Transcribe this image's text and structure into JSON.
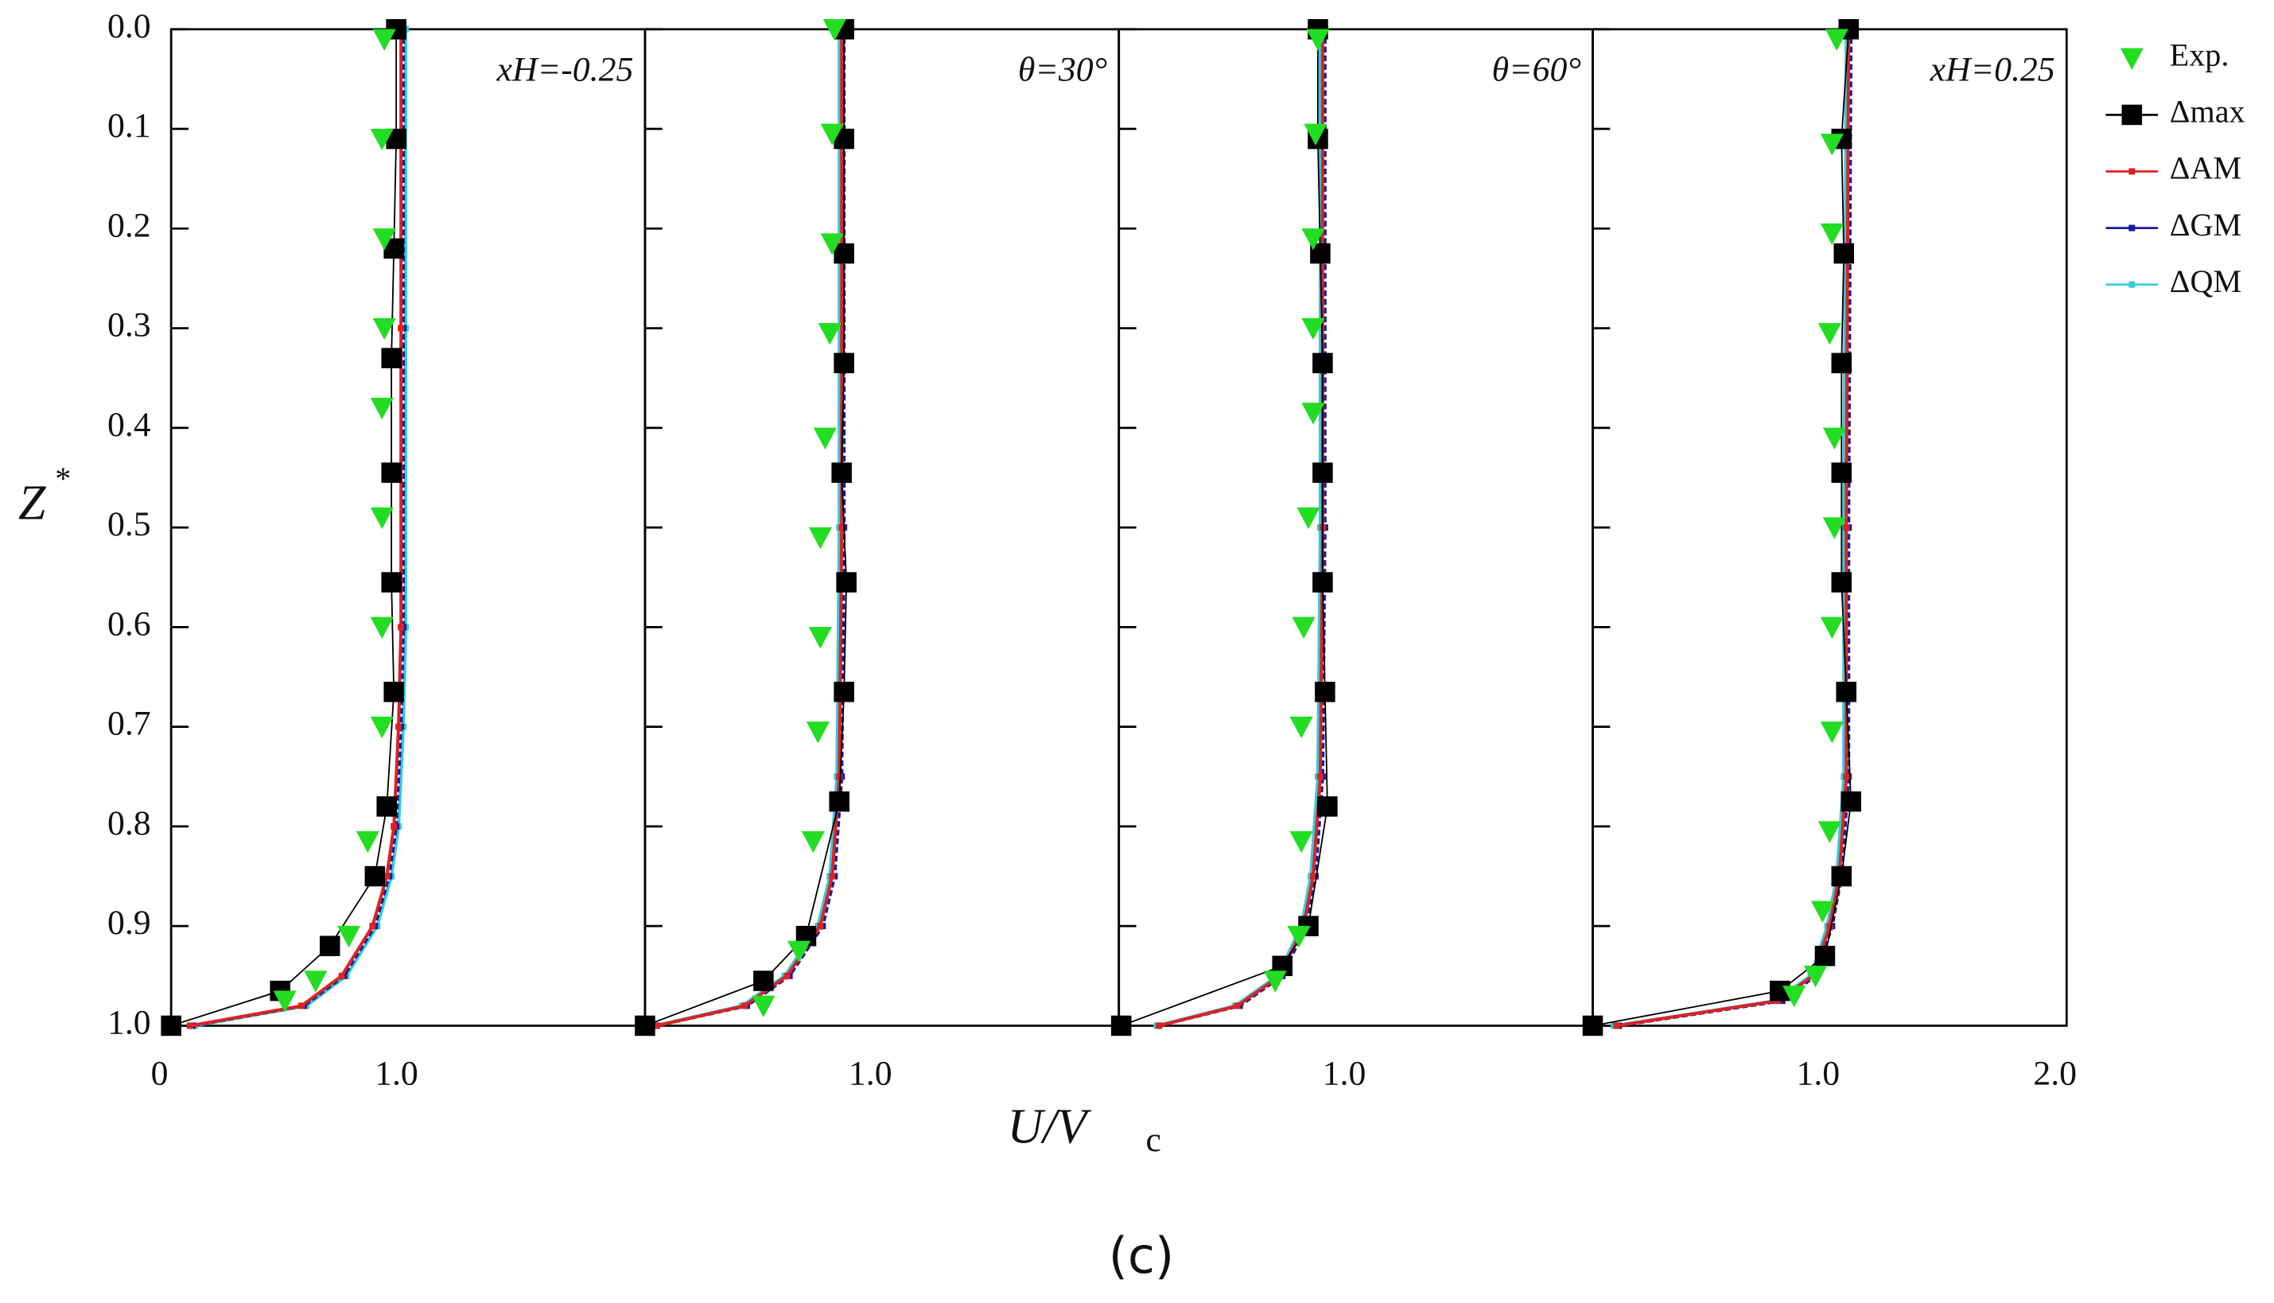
{
  "figure": {
    "xlabel": "U/V",
    "xlabel_sub": "c",
    "ylabel": "Z",
    "ylabel_sup": "*",
    "caption": "(c)"
  },
  "chart_data": [
    {
      "type": "line",
      "annotation": "xH=-0.25",
      "xlim": [
        0,
        2
      ],
      "ylim": [
        0,
        1
      ],
      "y_reversed": true,
      "xticks": [
        0,
        {
          "value": 1,
          "label": "1.0"
        }
      ],
      "yticks": [
        {
          "value": 0,
          "label": "0.0"
        },
        0.1,
        0.2,
        0.3,
        0.4,
        0.5,
        0.6,
        0.7,
        0.8,
        0.9,
        {
          "value": 1,
          "label": "1.0"
        }
      ],
      "series": [
        {
          "name": "Exp.",
          "color": "#22dd22",
          "marker": "triangle-down",
          "line": false,
          "x": [
            0.9,
            0.89,
            0.9,
            0.9,
            0.89,
            0.89,
            0.89,
            0.89,
            0.83,
            0.75,
            0.61,
            0.48
          ],
          "y": [
            0.01,
            0.11,
            0.21,
            0.3,
            0.38,
            0.49,
            0.6,
            0.7,
            0.815,
            0.91,
            0.955,
            0.975
          ]
        },
        {
          "name": "Δmax",
          "color": "#000000",
          "marker": "square",
          "line": true,
          "x": [
            0.95,
            0.95,
            0.94,
            0.93,
            0.93,
            0.93,
            0.94,
            0.91,
            0.86,
            0.67,
            0.46,
            0.0
          ],
          "y": [
            0.0,
            0.11,
            0.22,
            0.33,
            0.445,
            0.555,
            0.665,
            0.78,
            0.85,
            0.92,
            0.965,
            1.0
          ]
        },
        {
          "name": "ΔAM",
          "color": "#dd2222",
          "marker": "small-square",
          "line": true,
          "x": [
            0.97,
            0.97,
            0.97,
            0.96,
            0.94,
            0.91,
            0.85,
            0.72,
            0.55,
            0.08
          ],
          "y": [
            0.0,
            0.3,
            0.6,
            0.7,
            0.8,
            0.85,
            0.9,
            0.95,
            0.98,
            1.0
          ]
        },
        {
          "name": "ΔGM",
          "color": "#1a1a99",
          "marker": "small-square",
          "line": true,
          "x": [
            0.98,
            0.98,
            0.98,
            0.97,
            0.95,
            0.92,
            0.86,
            0.73,
            0.56,
            0.09
          ],
          "y": [
            0.0,
            0.3,
            0.6,
            0.7,
            0.8,
            0.85,
            0.9,
            0.95,
            0.98,
            1.0
          ]
        },
        {
          "name": "ΔQM",
          "color": "#33ccdd",
          "marker": "small-square",
          "line": true,
          "x": [
            0.99,
            0.99,
            0.99,
            0.98,
            0.96,
            0.93,
            0.87,
            0.74,
            0.57,
            0.1
          ],
          "y": [
            0.0,
            0.3,
            0.6,
            0.7,
            0.8,
            0.85,
            0.9,
            0.95,
            0.98,
            1.0
          ]
        }
      ]
    },
    {
      "type": "line",
      "annotation": "θ=30°",
      "xlim": [
        0,
        2
      ],
      "ylim": [
        0,
        1
      ],
      "y_reversed": true,
      "xticks": [
        {
          "value": 1,
          "label": "1.0"
        }
      ],
      "yticks": [
        0,
        0.1,
        0.2,
        0.3,
        0.4,
        0.5,
        0.6,
        0.7,
        0.8,
        0.9,
        1
      ],
      "series": [
        {
          "name": "Exp.",
          "color": "#22dd22",
          "marker": "triangle-down",
          "line": false,
          "x": [
            0.8,
            0.79,
            0.79,
            0.78,
            0.76,
            0.74,
            0.74,
            0.73,
            0.71,
            0.65,
            0.5
          ],
          "y": [
            0.0,
            0.105,
            0.215,
            0.305,
            0.41,
            0.51,
            0.61,
            0.705,
            0.815,
            0.925,
            0.98
          ]
        },
        {
          "name": "Δmax",
          "color": "#000000",
          "marker": "square",
          "line": true,
          "x": [
            0.84,
            0.84,
            0.84,
            0.84,
            0.83,
            0.85,
            0.84,
            0.82,
            0.68,
            0.5,
            0.0
          ],
          "y": [
            0.0,
            0.11,
            0.225,
            0.335,
            0.445,
            0.555,
            0.665,
            0.775,
            0.91,
            0.955,
            1.0
          ]
        },
        {
          "name": "ΔAM",
          "color": "#dd2222",
          "marker": "small-square",
          "line": true,
          "x": [
            0.83,
            0.83,
            0.82,
            0.79,
            0.74,
            0.6,
            0.42,
            0.05
          ],
          "y": [
            0.0,
            0.5,
            0.75,
            0.85,
            0.9,
            0.95,
            0.98,
            1.0
          ]
        },
        {
          "name": "ΔGM",
          "color": "#1a1a99",
          "marker": "small-square",
          "line": true,
          "x": [
            0.84,
            0.84,
            0.83,
            0.8,
            0.75,
            0.61,
            0.43,
            0.05
          ],
          "y": [
            0.0,
            0.5,
            0.75,
            0.85,
            0.9,
            0.95,
            0.98,
            1.0
          ]
        },
        {
          "name": "ΔQM",
          "color": "#33ccdd",
          "marker": "small-square",
          "line": true,
          "x": [
            0.82,
            0.82,
            0.81,
            0.78,
            0.73,
            0.59,
            0.41,
            0.04
          ],
          "y": [
            0.0,
            0.5,
            0.75,
            0.85,
            0.9,
            0.95,
            0.98,
            1.0
          ]
        }
      ]
    },
    {
      "type": "line",
      "annotation": "θ=60°",
      "xlim": [
        0,
        2
      ],
      "ylim": [
        0,
        1
      ],
      "y_reversed": true,
      "xticks": [
        {
          "value": 1,
          "label": "1.0"
        }
      ],
      "yticks": [
        0,
        0.1,
        0.2,
        0.3,
        0.4,
        0.5,
        0.6,
        0.7,
        0.8,
        0.9,
        1
      ],
      "series": [
        {
          "name": "Exp.",
          "color": "#22dd22",
          "marker": "triangle-down",
          "line": false,
          "x": [
            0.84,
            0.83,
            0.82,
            0.82,
            0.82,
            0.8,
            0.78,
            0.77,
            0.77,
            0.76,
            0.66
          ],
          "y": [
            0.01,
            0.105,
            0.21,
            0.3,
            0.385,
            0.49,
            0.6,
            0.7,
            0.815,
            0.91,
            0.955
          ]
        },
        {
          "name": "Δmax",
          "color": "#000000",
          "marker": "square",
          "line": true,
          "x": [
            0.84,
            0.84,
            0.85,
            0.86,
            0.86,
            0.86,
            0.87,
            0.88,
            0.8,
            0.69,
            0.01
          ],
          "y": [
            0.0,
            0.11,
            0.225,
            0.335,
            0.445,
            0.555,
            0.665,
            0.78,
            0.9,
            0.94,
            1.0
          ]
        },
        {
          "name": "ΔAM",
          "color": "#dd2222",
          "marker": "small-square",
          "line": true,
          "x": [
            0.86,
            0.86,
            0.85,
            0.82,
            0.78,
            0.68,
            0.5,
            0.17
          ],
          "y": [
            0.0,
            0.5,
            0.75,
            0.85,
            0.9,
            0.95,
            0.98,
            1.0
          ]
        },
        {
          "name": "ΔGM",
          "color": "#1a1a99",
          "marker": "small-square",
          "line": true,
          "x": [
            0.87,
            0.87,
            0.86,
            0.83,
            0.79,
            0.69,
            0.51,
            0.17
          ],
          "y": [
            0.0,
            0.5,
            0.75,
            0.85,
            0.9,
            0.95,
            0.98,
            1.0
          ]
        },
        {
          "name": "ΔQM",
          "color": "#33ccdd",
          "marker": "small-square",
          "line": true,
          "x": [
            0.85,
            0.85,
            0.84,
            0.81,
            0.77,
            0.67,
            0.49,
            0.16
          ],
          "y": [
            0.0,
            0.5,
            0.75,
            0.85,
            0.9,
            0.95,
            0.98,
            1.0
          ]
        }
      ]
    },
    {
      "type": "line",
      "annotation": "xH=0.25",
      "xlim": [
        0,
        2
      ],
      "ylim": [
        0,
        1
      ],
      "y_reversed": true,
      "xticks": [
        {
          "value": 1,
          "label": "1.0"
        },
        {
          "value": 2,
          "label": "2.0"
        }
      ],
      "yticks": [
        0,
        0.1,
        0.2,
        0.3,
        0.4,
        0.5,
        0.6,
        0.7,
        0.8,
        0.9,
        1
      ],
      "series": [
        {
          "name": "Exp.",
          "color": "#22dd22",
          "marker": "triangle-down",
          "line": false,
          "x": [
            1.03,
            1.01,
            1.01,
            1.0,
            1.02,
            1.02,
            1.01,
            1.01,
            1.0,
            0.97,
            0.94,
            0.85
          ],
          "y": [
            0.01,
            0.115,
            0.205,
            0.305,
            0.41,
            0.5,
            0.6,
            0.705,
            0.805,
            0.885,
            0.95,
            0.97
          ]
        },
        {
          "name": "Δmax",
          "color": "#000000",
          "marker": "square",
          "line": true,
          "x": [
            1.08,
            1.05,
            1.06,
            1.05,
            1.05,
            1.05,
            1.07,
            1.09,
            1.05,
            0.98,
            0.79,
            0.0
          ],
          "y": [
            0.0,
            0.11,
            0.225,
            0.335,
            0.445,
            0.555,
            0.665,
            0.775,
            0.85,
            0.93,
            0.965,
            1.0
          ]
        },
        {
          "name": "ΔAM",
          "color": "#dd2222",
          "marker": "small-square",
          "line": true,
          "x": [
            1.08,
            1.07,
            1.07,
            1.04,
            1.0,
            0.93,
            0.78,
            0.1
          ],
          "y": [
            0.0,
            0.5,
            0.75,
            0.85,
            0.9,
            0.95,
            0.975,
            1.0
          ]
        },
        {
          "name": "ΔGM",
          "color": "#1a1a99",
          "marker": "small-square",
          "line": true,
          "x": [
            1.09,
            1.08,
            1.08,
            1.05,
            1.01,
            0.94,
            0.8,
            0.11
          ],
          "y": [
            0.0,
            0.5,
            0.75,
            0.85,
            0.9,
            0.95,
            0.975,
            1.0
          ]
        },
        {
          "name": "ΔQM",
          "color": "#33ccdd",
          "marker": "small-square",
          "line": true,
          "x": [
            1.07,
            1.06,
            1.06,
            1.03,
            0.99,
            0.92,
            0.77,
            0.09
          ],
          "y": [
            0.0,
            0.5,
            0.75,
            0.85,
            0.9,
            0.95,
            0.975,
            1.0
          ]
        }
      ]
    }
  ]
}
